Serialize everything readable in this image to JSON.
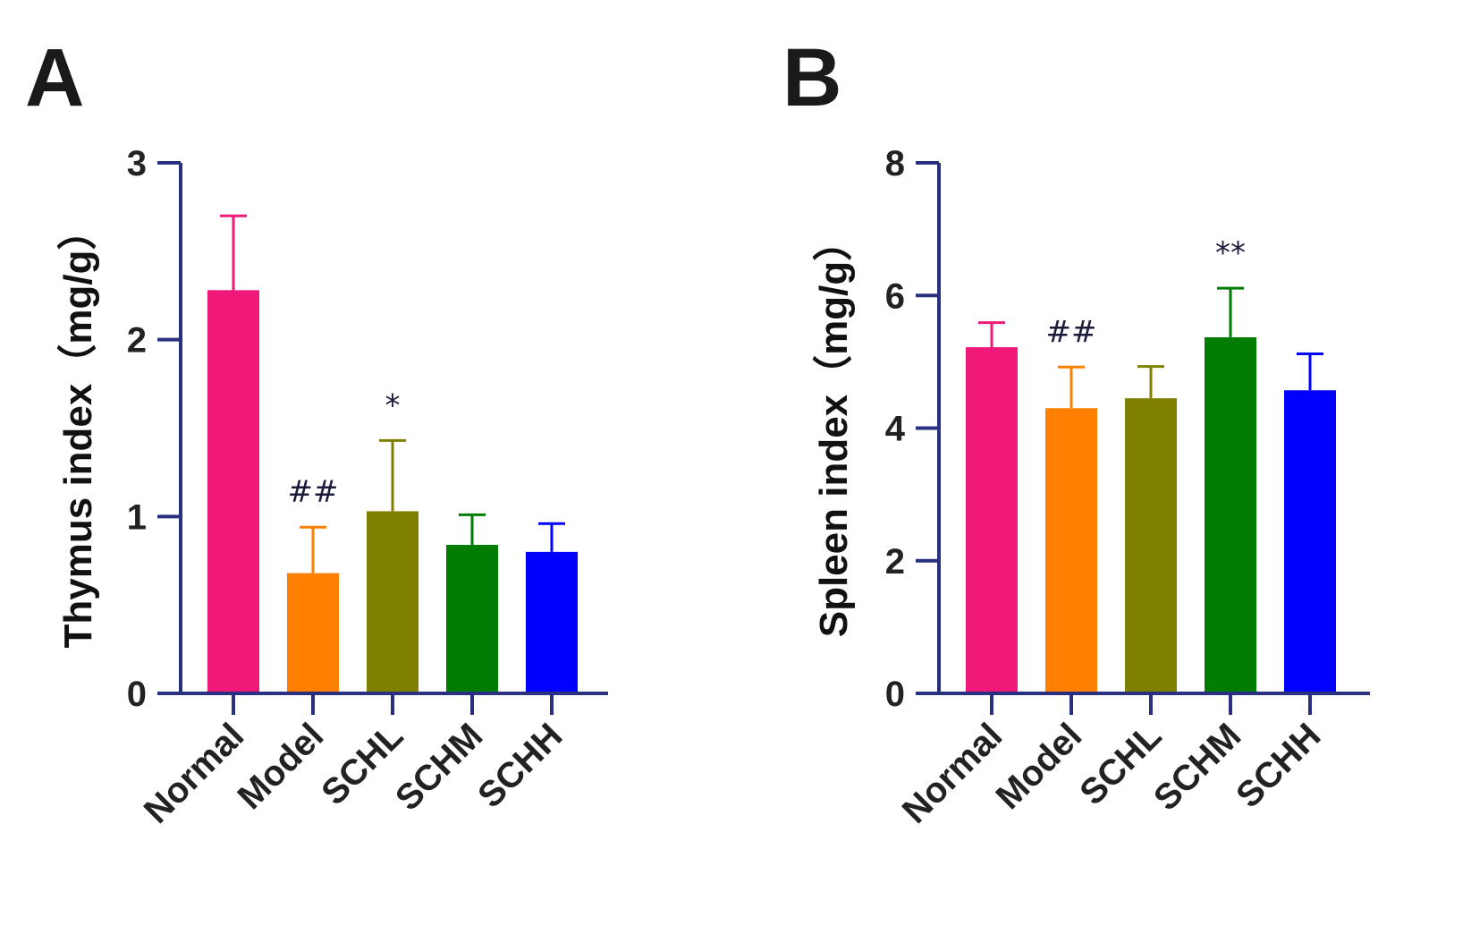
{
  "chart_data": [
    {
      "panel": "A",
      "type": "bar",
      "title": "",
      "xlabel": "",
      "ylabel": "Thymus index（mg/g）",
      "ylim": [
        0,
        3
      ],
      "yticks": [
        0,
        1,
        2,
        3
      ],
      "categories": [
        "Normal",
        "Model",
        "SCHL",
        "SCHM",
        "SCHH"
      ],
      "values": [
        2.28,
        0.68,
        1.03,
        0.84,
        0.8
      ],
      "errors": [
        0.42,
        0.26,
        0.4,
        0.17,
        0.16
      ],
      "annotations": [
        "",
        "##",
        "*",
        "",
        ""
      ],
      "colors": [
        "#f0197a",
        "#ff7f00",
        "#808000",
        "#007d00",
        "#0000ff"
      ],
      "axis_color": "#2a3080"
    },
    {
      "panel": "B",
      "type": "bar",
      "title": "",
      "xlabel": "",
      "ylabel": "Spleen index（mg/g）",
      "ylim": [
        0,
        8
      ],
      "yticks": [
        0,
        2,
        4,
        6,
        8
      ],
      "categories": [
        "Normal",
        "Model",
        "SCHL",
        "SCHM",
        "SCHH"
      ],
      "values": [
        5.22,
        4.3,
        4.45,
        5.37,
        4.57
      ],
      "errors": [
        0.37,
        0.62,
        0.48,
        0.74,
        0.55
      ],
      "annotations": [
        "",
        "##",
        "",
        "**",
        ""
      ],
      "colors": [
        "#f0197a",
        "#ff7f00",
        "#808000",
        "#007d00",
        "#0000ff"
      ],
      "axis_color": "#2a3080"
    }
  ]
}
